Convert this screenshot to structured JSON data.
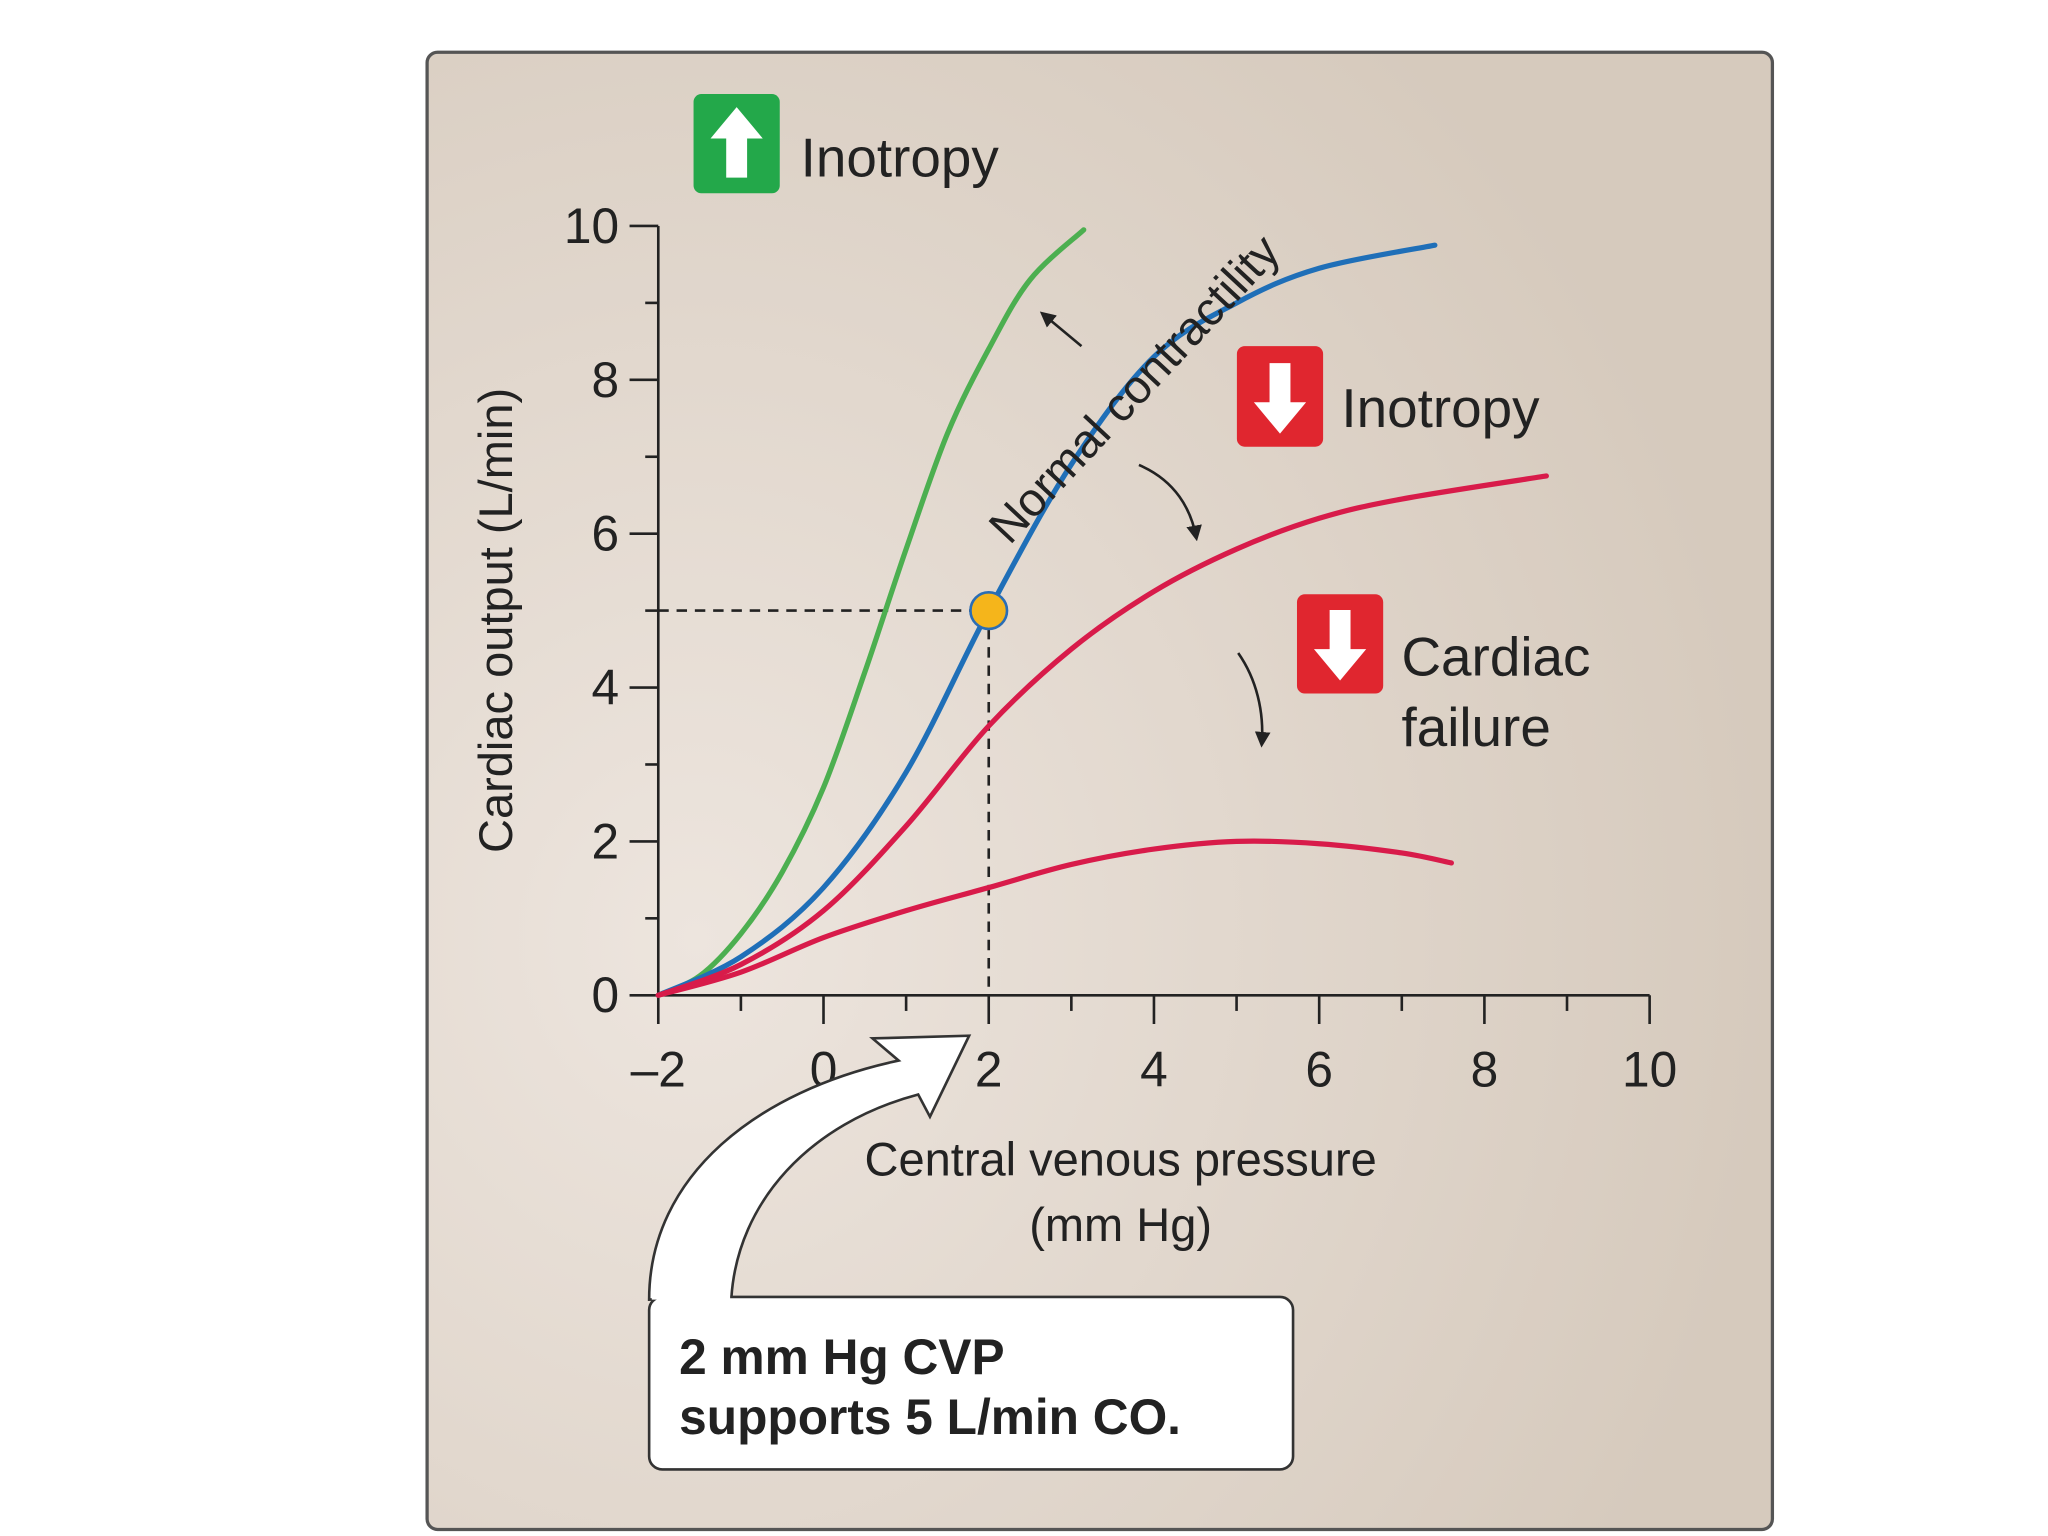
{
  "chart_data": {
    "type": "line",
    "xlim": [
      -2,
      10
    ],
    "ylim": [
      0,
      10
    ],
    "xticks": [
      {
        "value": -2,
        "label": "–2"
      },
      0,
      2,
      4,
      6,
      8,
      10
    ],
    "yticks": [
      0,
      2,
      4,
      6,
      8,
      10
    ],
    "x_label": [
      "Central venous pressure",
      "(mm Hg)"
    ],
    "y_label": "Cardiac output (L/min)",
    "series": [
      {
        "color": "#4caf50",
        "x": [
          -2,
          -1.5,
          -1,
          -0.5,
          0,
          0.5,
          1,
          1.5,
          2,
          2.5,
          3.15
        ],
        "values": [
          0,
          0.25,
          0.8,
          1.6,
          2.7,
          4.2,
          5.8,
          7.3,
          8.4,
          9.3,
          9.95
        ]
      },
      {
        "color": "#1f6fb8",
        "x": [
          -2,
          -1,
          0,
          1,
          2,
          3,
          4,
          5,
          6,
          7.4
        ],
        "values": [
          0,
          0.5,
          1.4,
          2.9,
          5,
          6.9,
          8.3,
          9.0,
          9.45,
          9.75
        ]
      },
      {
        "color": "#d81b4a",
        "x": [
          -2,
          -1,
          0,
          1,
          2,
          3,
          4,
          5,
          6,
          7,
          8.75
        ],
        "values": [
          0,
          0.4,
          1.1,
          2.2,
          3.5,
          4.5,
          5.25,
          5.8,
          6.2,
          6.45,
          6.75
        ]
      },
      {
        "color": "#d81b4a",
        "x": [
          -2,
          -1,
          0,
          1,
          2,
          3,
          4,
          5,
          6,
          7,
          7.6
        ],
        "values": [
          0,
          0.3,
          0.75,
          1.1,
          1.4,
          1.7,
          1.9,
          2.0,
          1.97,
          1.85,
          1.72
        ]
      }
    ],
    "operating_point": {
      "x": 2,
      "y": 5,
      "color": "#f5b51b"
    },
    "annotations": {
      "increased_inotropy": "Inotropy",
      "normal": "Normal contractility",
      "decreased_inotropy": "Inotropy",
      "cardiac_failure": [
        "Cardiac",
        "failure"
      ],
      "callout": [
        "2 mm Hg CVP",
        "supports 5 L/min CO."
      ]
    }
  }
}
